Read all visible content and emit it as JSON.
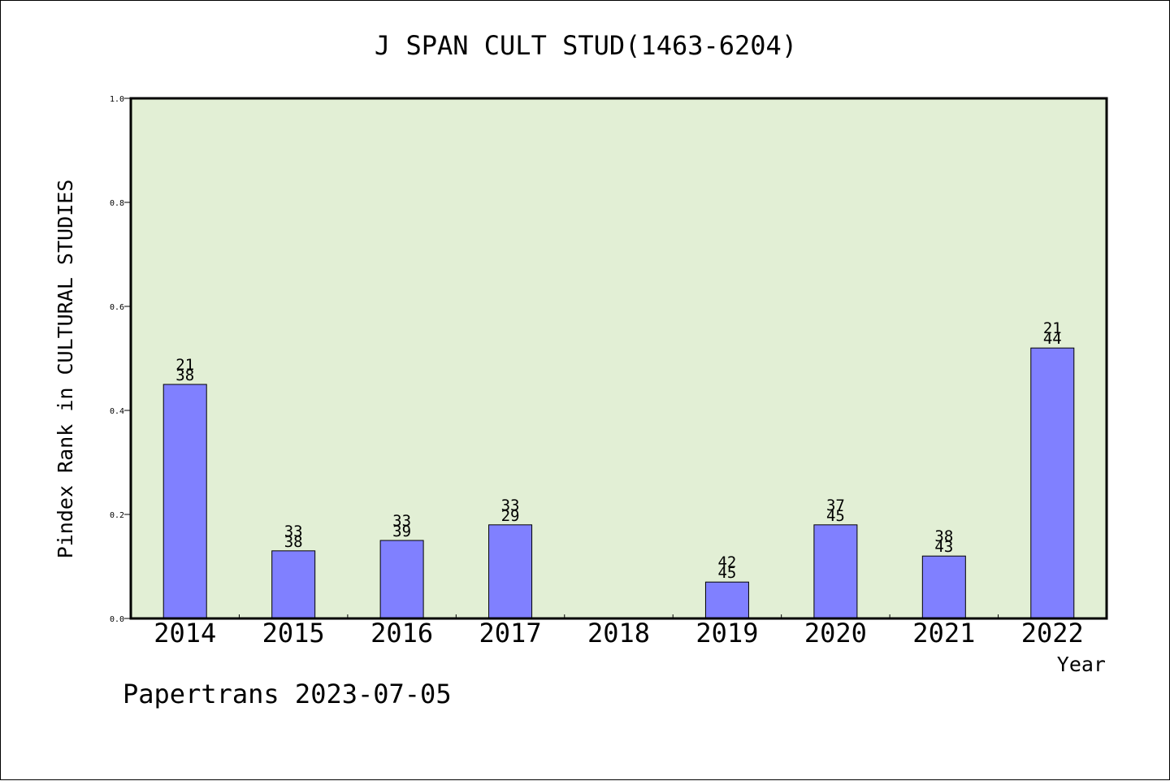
{
  "chart_data": {
    "type": "bar",
    "title": "J SPAN CULT STUD(1463-6204)",
    "xlabel": "Year",
    "ylabel": "Pindex Rank in CULTURAL STUDIES",
    "ylim": [
      0,
      1.0
    ],
    "yticks": [
      "0.0",
      "0.2",
      "0.4",
      "0.6",
      "0.8",
      "1.0"
    ],
    "categories": [
      "2014",
      "2015",
      "2016",
      "2017",
      "2018",
      "2019",
      "2020",
      "2021",
      "2022"
    ],
    "values": [
      0.45,
      0.13,
      0.15,
      0.18,
      null,
      0.07,
      0.18,
      0.12,
      0.52
    ],
    "label_top": [
      "21",
      "33",
      "33",
      "33",
      "",
      "42",
      "37",
      "38",
      "21"
    ],
    "label_bottom": [
      "38",
      "38",
      "39",
      "29",
      "",
      "45",
      "45",
      "43",
      "44"
    ],
    "grid": false,
    "colors": {
      "plot_bg": "#e2efd5",
      "bar": "#8080ff",
      "bar_edge": "#000000"
    }
  },
  "footer": "Papertrans 2023-07-05"
}
